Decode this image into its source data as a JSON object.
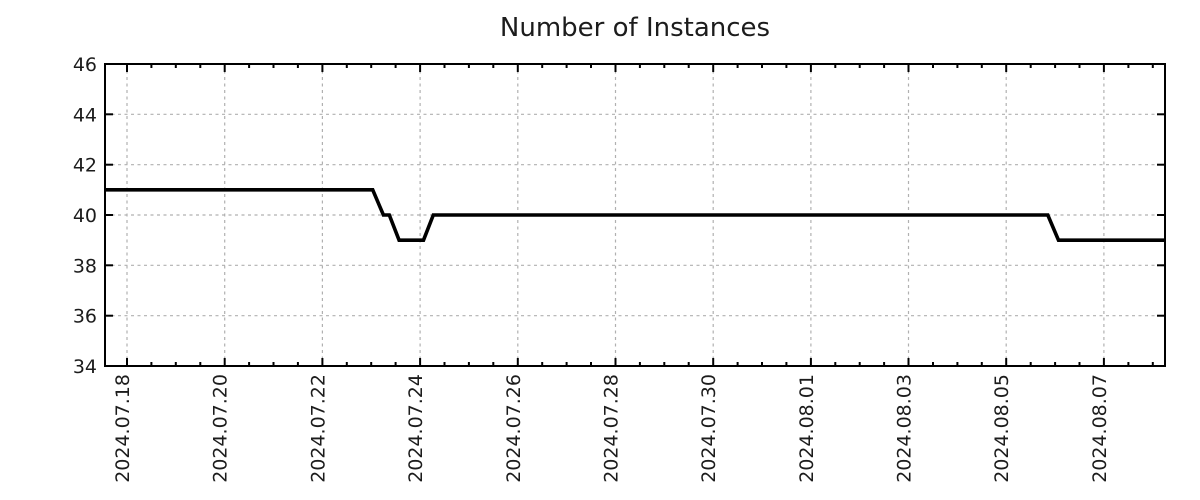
{
  "chart_data": {
    "type": "line",
    "title": "Number of Instances",
    "xlabel": "",
    "ylabel": "",
    "legend": "none",
    "grid": "dashed",
    "x_tick_labels": [
      "2024.07.18",
      "2024.07.20",
      "2024.07.22",
      "2024.07.24",
      "2024.07.26",
      "2024.07.28",
      "2024.07.30",
      "2024.08.01",
      "2024.08.03",
      "2024.08.05",
      "2024.08.07"
    ],
    "x_tick_days": [
      0,
      2,
      4,
      6,
      8,
      10,
      12,
      14,
      16,
      18,
      20
    ],
    "x_minor_step_days": 0.5,
    "x_major_step_days": 2,
    "xlim_days": [
      -0.45,
      21.25
    ],
    "y_ticks": [
      34,
      36,
      38,
      40,
      42,
      44,
      46
    ],
    "ylim": [
      34,
      46
    ],
    "series": [
      {
        "name": "instances",
        "points_day_value": [
          [
            -0.45,
            41
          ],
          [
            5.03,
            41
          ],
          [
            5.25,
            40
          ],
          [
            5.37,
            40
          ],
          [
            5.57,
            39
          ],
          [
            6.07,
            39
          ],
          [
            6.27,
            40
          ],
          [
            18.85,
            40
          ],
          [
            19.07,
            39
          ],
          [
            21.25,
            39
          ]
        ]
      }
    ],
    "colors": {
      "line": "#000000",
      "grid": "#b0b0b0",
      "axis": "#000000",
      "text": "#1c1c1c",
      "background": "#ffffff"
    }
  }
}
